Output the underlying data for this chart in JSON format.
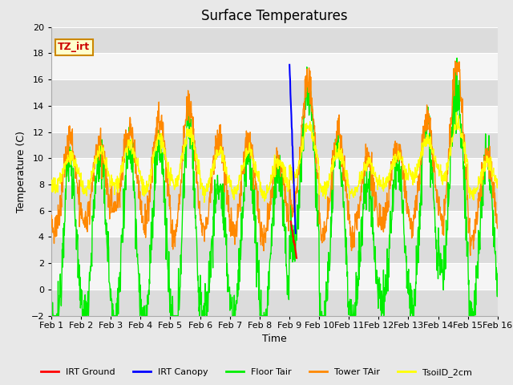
{
  "title": "Surface Temperatures",
  "xlabel": "Time",
  "ylabel": "Temperature (C)",
  "ylim": [
    -2,
    20
  ],
  "xlim": [
    0,
    15
  ],
  "xtick_labels": [
    "Feb 1",
    "Feb 2",
    "Feb 3",
    "Feb 4",
    "Feb 5",
    "Feb 6",
    "Feb 7",
    "Feb 8",
    "Feb 9",
    "Feb 10",
    "Feb 11",
    "Feb 12",
    "Feb 13",
    "Feb 14",
    "Feb 15",
    "Feb 16"
  ],
  "xtick_positions": [
    0,
    1,
    2,
    3,
    4,
    5,
    6,
    7,
    8,
    9,
    10,
    11,
    12,
    13,
    14,
    15
  ],
  "annotation_text": "TZ_irt",
  "annotation_color": "#cc0000",
  "annotation_bg": "#ffffcc",
  "annotation_border": "#cc8800",
  "legend_entries": [
    {
      "label": "IRT Ground",
      "color": "#ff0000"
    },
    {
      "label": "IRT Canopy",
      "color": "#0000ff"
    },
    {
      "label": "Floor Tair",
      "color": "#00ee00"
    },
    {
      "label": "Tower TAir",
      "color": "#ff8800"
    },
    {
      "label": "TsoilD_2cm",
      "color": "#ffff00"
    }
  ],
  "bg_color": "#e8e8e8",
  "plot_bg_light": "#f5f5f5",
  "plot_bg_dark": "#dcdcdc",
  "grid_color": "#ffffff",
  "title_fontsize": 12,
  "n_per_day": 96,
  "n_days": 15
}
